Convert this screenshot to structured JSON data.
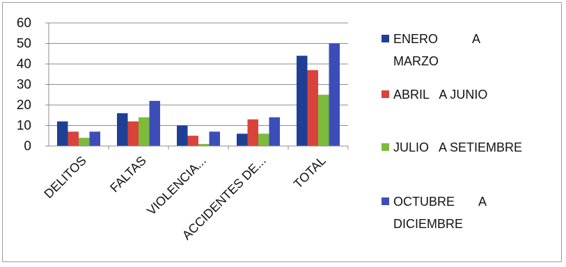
{
  "chart_data": {
    "type": "bar",
    "categories": [
      "DELITOS",
      "FALTAS",
      "VIOLENCIA...",
      "ACCIDENTES DE...",
      "TOTAL"
    ],
    "series": [
      {
        "name": "ENERO A MARZO",
        "legend_lines": [
          "ENERO          A",
          "MARZO"
        ],
        "color": "#1f3f95",
        "values": [
          12,
          16,
          10,
          6,
          44
        ]
      },
      {
        "name": "ABRIL A JUNIO",
        "legend_lines": [
          "ABRIL   A JUNIO"
        ],
        "color": "#d9433a",
        "values": [
          7,
          12,
          5,
          13,
          37
        ]
      },
      {
        "name": "JULIO A SETIEMBRE",
        "legend_lines": [
          "JULIO   A SETIEMBRE"
        ],
        "color": "#7dbb3c",
        "values": [
          4,
          14,
          1,
          6,
          25
        ]
      },
      {
        "name": "OCTUBRE A DICIEMBRE",
        "legend_lines": [
          "OCTUBRE       A",
          "DICIEMBRE"
        ],
        "color": "#3d4db8",
        "values": [
          7,
          22,
          7,
          14,
          50
        ]
      }
    ],
    "ylim": [
      0,
      60
    ],
    "yticks": [
      0,
      10,
      20,
      30,
      40,
      50,
      60
    ],
    "grid": true,
    "legend_position": "right"
  }
}
